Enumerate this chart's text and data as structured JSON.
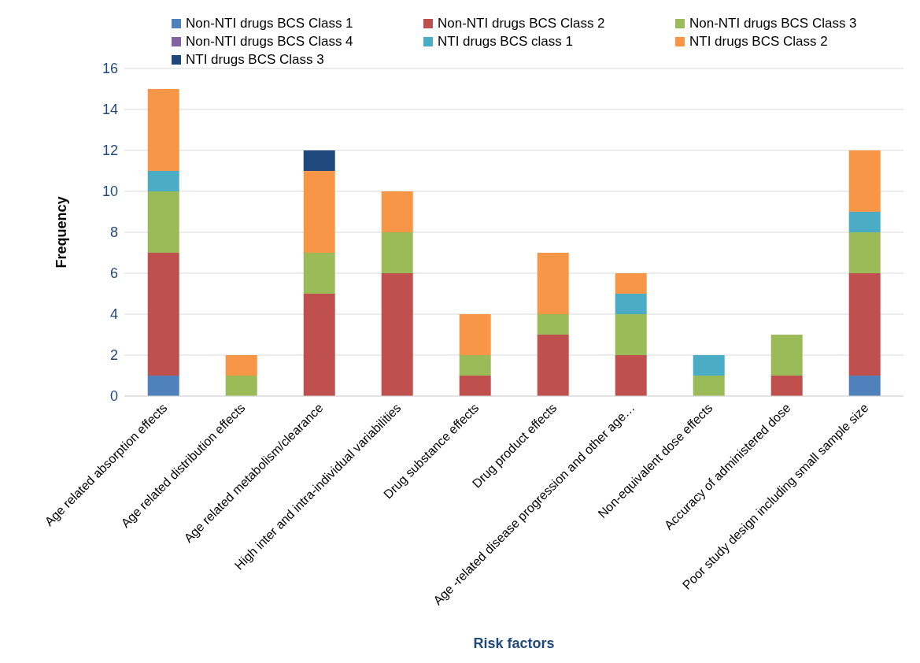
{
  "chart_data": {
    "type": "bar",
    "stacked": true,
    "xlabel": "Risk factors",
    "ylabel": "Frequency",
    "categories": [
      "Age related absorption effects",
      "Age related distribution effects",
      "Age related metabolism/clearance",
      "High inter and intra-individual variabilities",
      "Drug substance effects",
      "Drug product effects",
      "Age -related disease progression and other age…",
      "Non-equivalent dose effects",
      "Accuracy of administered dose",
      "Poor study design including small sample size"
    ],
    "series": [
      {
        "name": "Non-NTI drugs  BCS Class 1",
        "color": "#4f81bd",
        "values": [
          1,
          0,
          0,
          0,
          0,
          0,
          0,
          0,
          0,
          1
        ]
      },
      {
        "name": "Non-NTI drugs  BCS Class 2",
        "color": "#c0504d",
        "values": [
          6,
          0,
          5,
          6,
          1,
          3,
          2,
          0,
          1,
          5
        ]
      },
      {
        "name": "Non-NTI drugs  BCS Class 3",
        "color": "#9bbb59",
        "values": [
          3,
          1,
          2,
          2,
          1,
          1,
          2,
          1,
          2,
          2
        ]
      },
      {
        "name": "Non-NTI drugs  BCS Class 4",
        "color": "#8064a2",
        "values": [
          0,
          0,
          0,
          0,
          0,
          0,
          0,
          0,
          0,
          0
        ]
      },
      {
        "name": "NTI drugs BCS class 1",
        "color": "#4bacc6",
        "values": [
          1,
          0,
          0,
          0,
          0,
          0,
          1,
          1,
          0,
          1
        ]
      },
      {
        "name": "NTI drugs BCS Class 2",
        "color": "#f79646",
        "values": [
          4,
          1,
          4,
          2,
          2,
          3,
          1,
          0,
          0,
          3
        ]
      },
      {
        "name": "NTI drugs BCS Class 3",
        "color": "#1f497d",
        "values": [
          0,
          0,
          1,
          0,
          0,
          0,
          0,
          0,
          0,
          0
        ]
      }
    ],
    "ylim": [
      0,
      16
    ],
    "yticks": [
      0,
      2,
      4,
      6,
      8,
      10,
      12,
      14,
      16
    ],
    "grid": "y",
    "legend": "top"
  }
}
